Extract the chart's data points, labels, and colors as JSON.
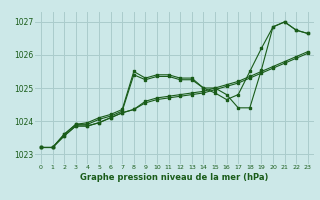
{
  "title": "Graphe pression niveau de la mer (hPa)",
  "bg_color": "#cce8e8",
  "grid_color": "#aacccc",
  "line_color": "#1a5c1a",
  "xlim": [
    -0.5,
    23.5
  ],
  "ylim": [
    1022.7,
    1027.3
  ],
  "yticks": [
    1023,
    1024,
    1025,
    1026,
    1027
  ],
  "xticks": [
    0,
    1,
    2,
    3,
    4,
    5,
    6,
    7,
    8,
    9,
    10,
    11,
    12,
    13,
    14,
    15,
    16,
    17,
    18,
    19,
    20,
    21,
    22,
    23
  ],
  "series": [
    [
      1023.2,
      1023.2,
      1023.6,
      1023.9,
      1023.95,
      1024.1,
      1024.2,
      1024.35,
      1025.5,
      1025.3,
      1025.4,
      1025.4,
      1025.3,
      1025.3,
      1025.0,
      1024.85,
      1024.65,
      1024.8,
      1025.5,
      1026.2,
      1026.85,
      1027.0,
      1026.75,
      1026.65
    ],
    [
      1023.2,
      1023.2,
      1023.6,
      1023.9,
      1023.9,
      1024.05,
      1024.15,
      1024.3,
      1025.4,
      1025.25,
      1025.35,
      1025.35,
      1025.25,
      1025.25,
      1025.0,
      1025.0,
      1024.8,
      1024.4,
      1024.4,
      1025.55,
      1026.85,
      1027.0,
      1026.75,
      1026.65
    ],
    [
      1023.2,
      1023.2,
      1023.55,
      1023.85,
      1023.85,
      1023.95,
      1024.1,
      1024.25,
      1024.35,
      1024.6,
      1024.7,
      1024.75,
      1024.8,
      1024.85,
      1024.9,
      1025.0,
      1025.1,
      1025.2,
      1025.35,
      1025.5,
      1025.65,
      1025.8,
      1025.95,
      1026.1
    ],
    [
      1023.2,
      1023.2,
      1023.55,
      1023.85,
      1023.85,
      1023.95,
      1024.1,
      1024.25,
      1024.35,
      1024.55,
      1024.65,
      1024.7,
      1024.75,
      1024.8,
      1024.85,
      1024.95,
      1025.05,
      1025.15,
      1025.3,
      1025.45,
      1025.6,
      1025.75,
      1025.9,
      1026.05
    ]
  ]
}
